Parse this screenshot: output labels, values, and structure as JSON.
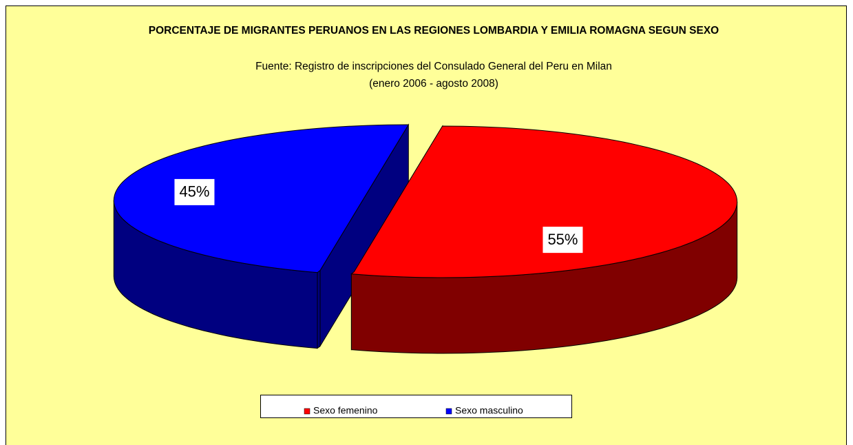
{
  "chart_data": {
    "type": "pie3d",
    "title": "PORCENTAJE DE MIGRANTES PERUANOS EN LAS REGIONES LOMBARDIA Y EMILIA ROMAGNA SEGUN SEXO",
    "subtitle": [
      "Fuente: Registro de inscripciones del Consulado General del Peru en Milan",
      "(enero 2006 - agosto 2008)"
    ],
    "categories": [
      "Sexo femenino",
      "Sexo masculino"
    ],
    "values": [
      55,
      45
    ],
    "value_labels": [
      "55%",
      "45%"
    ],
    "colors": [
      "#ff0000",
      "#0000ff"
    ],
    "legend": "bottom"
  }
}
